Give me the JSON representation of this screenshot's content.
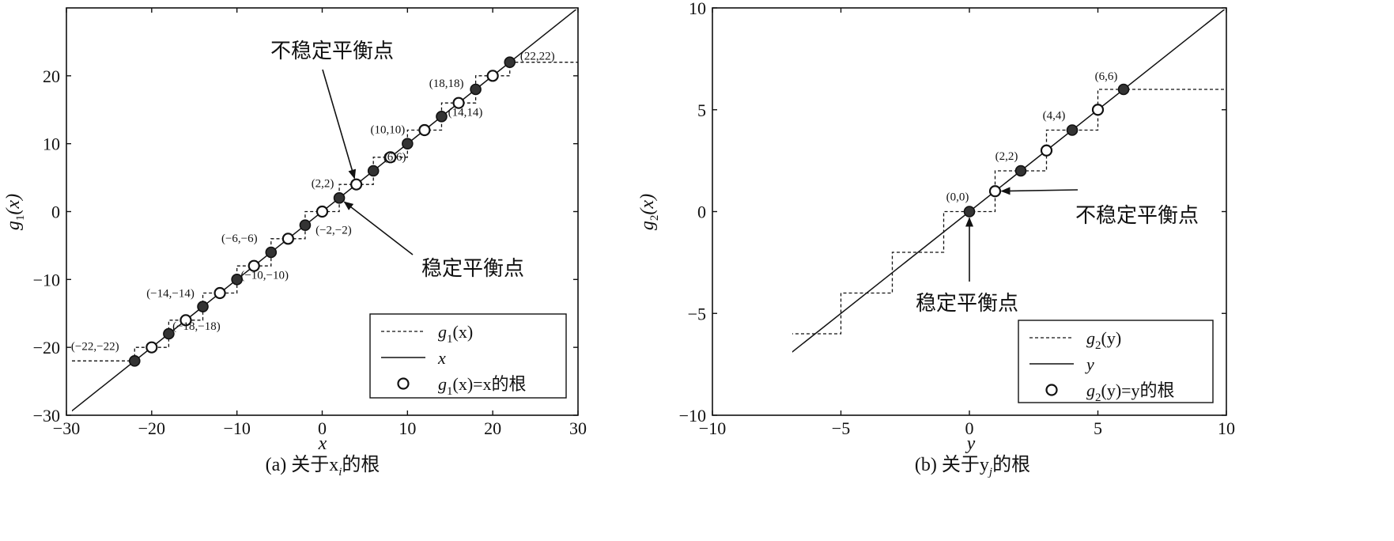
{
  "chart_data": [
    {
      "type": "line",
      "xlabel": "x",
      "ylabel": "g1(x)",
      "xlim": [
        -30,
        30
      ],
      "ylim": [
        -30,
        30
      ],
      "x_ticks": [
        -30,
        -20,
        -10,
        0,
        10,
        20,
        30
      ],
      "y_ticks": [
        -30,
        -20,
        -10,
        0,
        10,
        20
      ],
      "x_tick_labels": [
        "−30",
        "−20",
        "−10",
        "0",
        "10",
        "20",
        "30"
      ],
      "y_tick_labels": [
        "−30",
        "−20",
        "−10",
        "0",
        "10",
        "20"
      ],
      "caption": "(a) 关于x",
      "caption_sub": "i",
      "caption_tail": "的根",
      "series": [
        {
          "name": "g1(x)",
          "style": "dashed",
          "step_width": 4,
          "x_range": [
            -30,
            30
          ],
          "y_clip": [
            -22,
            22
          ]
        },
        {
          "name": "x",
          "style": "solid",
          "points": [
            [
              -30,
              -30
            ],
            [
              30,
              30
            ]
          ]
        }
      ],
      "stable_points": [
        -22,
        -18,
        -14,
        -10,
        -6,
        -2,
        2,
        6,
        10,
        14,
        18,
        22
      ],
      "unstable_points": [
        -20,
        -16,
        -12,
        -8,
        -4,
        0,
        4,
        8,
        12,
        16,
        20
      ],
      "point_labels": [
        {
          "text": "(−22,−22)",
          "x": -22
        },
        {
          "text": "(−18,−18)",
          "x": -18
        },
        {
          "text": "(−14,−14)",
          "x": -14
        },
        {
          "text": "(−10,−10)",
          "x": -10
        },
        {
          "text": "(−6,−6)",
          "x": -6
        },
        {
          "text": "(−2,−2)",
          "x": -2
        },
        {
          "text": "(2,2)",
          "x": 2
        },
        {
          "text": "(6,6)",
          "x": 6
        },
        {
          "text": "(10,10)",
          "x": 10
        },
        {
          "text": "(14,14)",
          "x": 14
        },
        {
          "text": "(18,18)",
          "x": 18
        },
        {
          "text": "(22,22)",
          "x": 22
        }
      ],
      "annotations": [
        {
          "text": "不稳定平衡点",
          "target": [
            4,
            4
          ]
        },
        {
          "text": "稳定平衡点",
          "target": [
            2,
            2
          ]
        }
      ],
      "legend": {
        "placement": "bottom-right",
        "entries": [
          {
            "main": "g",
            "sub": "1",
            "tail": "(x)"
          },
          {
            "main": "x",
            "sub": "",
            "tail": ""
          },
          {
            "main": "g",
            "sub": "1",
            "tail": "(x)=x的根"
          }
        ]
      }
    },
    {
      "type": "line",
      "xlabel": "y",
      "ylabel": "g2(x)",
      "xlim": [
        -10,
        10
      ],
      "ylim": [
        -10,
        10
      ],
      "x_ticks": [
        -10,
        -5,
        0,
        5,
        10
      ],
      "y_ticks": [
        -10,
        -5,
        0,
        5,
        10
      ],
      "x_tick_labels": [
        "−10",
        "−5",
        "0",
        "5",
        "10"
      ],
      "y_tick_labels": [
        "−10",
        "−5",
        "0",
        "5",
        "10"
      ],
      "caption": "(b) 关于y",
      "caption_sub": "j",
      "caption_tail": "的根",
      "series": [
        {
          "name": "g2(y)",
          "style": "dashed",
          "step_width": 2,
          "x_range": [
            -10,
            10
          ],
          "y_clip": [
            -6,
            6
          ]
        },
        {
          "name": "y",
          "style": "solid",
          "points": [
            [
              -10,
              -10
            ],
            [
              10,
              10
            ]
          ]
        }
      ],
      "stable_points": [
        0,
        2,
        4,
        6
      ],
      "unstable_points": [
        1,
        3,
        5
      ],
      "point_labels": [
        {
          "text": "(0,0)",
          "x": 0
        },
        {
          "text": "(2,2)",
          "x": 2
        },
        {
          "text": "(4,4)",
          "x": 4
        },
        {
          "text": "(6,6)",
          "x": 6
        }
      ],
      "annotations": [
        {
          "text": "不稳定平衡点",
          "target": [
            1,
            1
          ]
        },
        {
          "text": "稳定平衡点",
          "target": [
            0,
            0
          ]
        }
      ],
      "legend": {
        "placement": "bottom-right",
        "entries": [
          {
            "main": "g",
            "sub": "2",
            "tail": "(y)"
          },
          {
            "main": "y",
            "sub": "",
            "tail": ""
          },
          {
            "main": "g",
            "sub": "2",
            "tail": "(y)=y的根"
          }
        ]
      }
    }
  ]
}
